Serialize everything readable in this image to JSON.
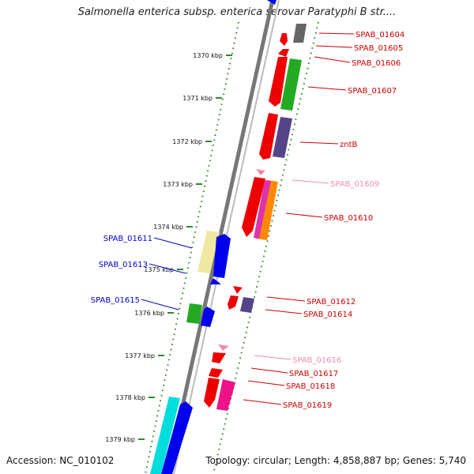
{
  "title": "Salmonella enterica subsp. enterica serovar Paratyphi B str....",
  "accession": "Accession: NC_010102",
  "topology": "Topology: circular; Length: 4,858,887 bp; Genes: 5,740",
  "colors": {
    "backbone": "#808080",
    "tick": "#2a8a2a",
    "label_red": "#cc0000",
    "label_pink": "#f08cb0",
    "label_blue": "#0000cc"
  },
  "ruler_labels": [
    "1370 kbp",
    "1371 kbp",
    "1372 kbp",
    "1373 kbp",
    "1374 kbp",
    "1375 kbp",
    "1376 kbp",
    "1377 kbp",
    "1378 kbp",
    "1379 kbp"
  ],
  "genes_right": [
    {
      "name": "SPAB_01604",
      "color": "red"
    },
    {
      "name": "SPAB_01605",
      "color": "red"
    },
    {
      "name": "SPAB_01606",
      "color": "red"
    },
    {
      "name": "SPAB_01607",
      "color": "red"
    },
    {
      "name": "zntB",
      "color": "red"
    },
    {
      "name": "SPAB_01609",
      "color": "pink"
    },
    {
      "name": "SPAB_01610",
      "color": "red"
    },
    {
      "name": "SPAB_01612",
      "color": "red"
    },
    {
      "name": "SPAB_01614",
      "color": "red"
    },
    {
      "name": "SPAB_01616",
      "color": "pink"
    },
    {
      "name": "SPAB_01617",
      "color": "red"
    },
    {
      "name": "SPAB_01618",
      "color": "red"
    },
    {
      "name": "SPAB_01619",
      "color": "red"
    }
  ],
  "genes_left": [
    {
      "name": "SPAB_01611",
      "color": "blue"
    },
    {
      "name": "SPAB_01613",
      "color": "blue"
    },
    {
      "name": "SPAB_01615",
      "color": "blue"
    }
  ]
}
